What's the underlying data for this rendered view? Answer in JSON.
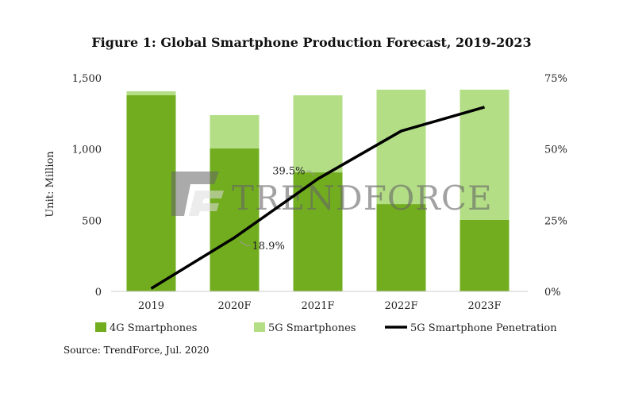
{
  "chart_data": {
    "type": "bar",
    "title": "Figure 1: Global Smartphone Production Forecast, 2019-2023",
    "ylabel": "Unit: Million",
    "y2label": "",
    "categories": [
      "2019",
      "2020F",
      "2021F",
      "2022F",
      "2023F"
    ],
    "ylim": [
      0,
      1500
    ],
    "y2lim": [
      0,
      75
    ],
    "yticks": [
      "0",
      "500",
      "1,000",
      "1,500"
    ],
    "y2ticks": [
      "0%",
      "25%",
      "50%",
      "75%"
    ],
    "series": [
      {
        "name": "4G Smartphones",
        "type": "bar",
        "stack": true,
        "color": "#72ad1f",
        "values": [
          1378,
          1004,
          836,
          613,
          502
        ]
      },
      {
        "name": "5G Smartphones",
        "type": "bar",
        "stack": true,
        "color": "#b3de86",
        "values": [
          27,
          234,
          541,
          804,
          915
        ]
      },
      {
        "name": "5G Smartphone Penetration",
        "type": "line",
        "axis": "right",
        "color": "#000000",
        "values": [
          1.0,
          18.9,
          39.5,
          56.3,
          64.7
        ]
      }
    ],
    "annotations": [
      "18.9%",
      "39.5%"
    ],
    "legend": "bottom",
    "grid": false,
    "source": "Source: TrendForce, Jul. 2020",
    "watermark": "TrendForce"
  }
}
